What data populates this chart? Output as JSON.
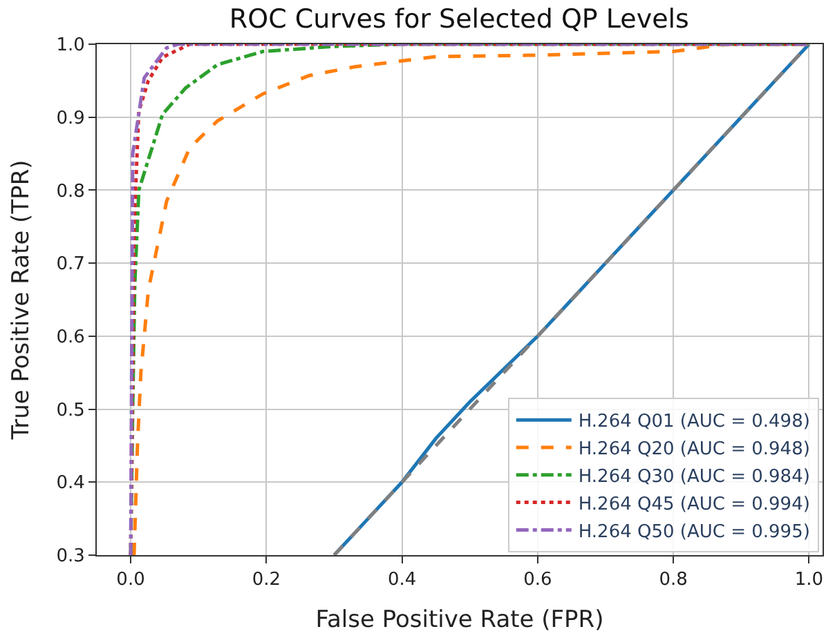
{
  "chart_data": {
    "type": "line",
    "title": "ROC Curves for Selected QP Levels",
    "xlabel": "False Positive Rate (FPR)",
    "ylabel": "True Positive Rate (TPR)",
    "xlim": [
      -0.05,
      1.02
    ],
    "ylim": [
      0.3,
      1.0
    ],
    "xticks": [
      {
        "value": 0,
        "label": "0.0"
      },
      0.2,
      0.4,
      0.6,
      0.8,
      {
        "value": 1,
        "label": "1.0"
      }
    ],
    "yticks": [
      0.3,
      0.4,
      0.5,
      0.6,
      0.7,
      0.8,
      0.9,
      {
        "value": 1,
        "label": "1.0"
      }
    ],
    "grid": true,
    "legend": "bottom right",
    "series": [
      {
        "name": "H.264 Q01 (AUC = 0.498)",
        "color": "#1f77b4",
        "line_style": "solid",
        "x": [
          0.3,
          0.35,
          0.4,
          0.45,
          0.5,
          0.55,
          0.6,
          0.65,
          0.7,
          0.75,
          0.8,
          0.85,
          0.9,
          0.95,
          1.0
        ],
        "values": [
          0.3,
          0.35,
          0.4,
          0.46,
          0.51,
          0.555,
          0.6,
          0.65,
          0.7,
          0.75,
          0.8,
          0.85,
          0.9,
          0.95,
          1.0
        ]
      },
      {
        "name": "H.264 Q20 (AUC = 0.948)",
        "color": "#ff7f0e",
        "line_style": "dashed",
        "x": [
          0.005,
          0.01,
          0.015,
          0.02,
          0.026,
          0.053,
          0.087,
          0.128,
          0.195,
          0.263,
          0.33,
          0.45,
          0.6,
          0.8,
          0.88,
          1.0
        ],
        "values": [
          0.3,
          0.45,
          0.55,
          0.6,
          0.663,
          0.785,
          0.858,
          0.895,
          0.932,
          0.957,
          0.969,
          0.983,
          0.985,
          0.99,
          1.0,
          1.0
        ]
      },
      {
        "name": "H.264 Q30 (AUC = 0.984)",
        "color": "#2ca02c",
        "line_style": "dashdot",
        "x": [
          0.0,
          0.003,
          0.006,
          0.012,
          0.047,
          0.081,
          0.128,
          0.195,
          0.3,
          0.4,
          1.0
        ],
        "values": [
          0.3,
          0.5,
          0.67,
          0.8,
          0.904,
          0.94,
          0.972,
          0.99,
          0.997,
          1.0,
          1.0
        ]
      },
      {
        "name": "H.264 Q45 (AUC = 0.994)",
        "color": "#d62728",
        "line_style": "dotted",
        "x": [
          0.0,
          0.005,
          0.012,
          0.026,
          0.047,
          0.087,
          1.0
        ],
        "values": [
          0.3,
          0.75,
          0.908,
          0.95,
          0.982,
          1.0,
          1.0
        ]
      },
      {
        "name": "H.264 Q50 (AUC = 0.995)",
        "color": "#9467bd",
        "line_style": "dashdot",
        "x": [
          0.0,
          0.003,
          0.02,
          0.053,
          0.07,
          1.0
        ],
        "values": [
          0.3,
          0.85,
          0.954,
          0.995,
          1.0,
          1.0
        ]
      },
      {
        "color": "#808080",
        "line_style": "dashed",
        "x": [
          0.3,
          1.0
        ],
        "values": [
          0.3,
          1.0
        ]
      }
    ]
  }
}
